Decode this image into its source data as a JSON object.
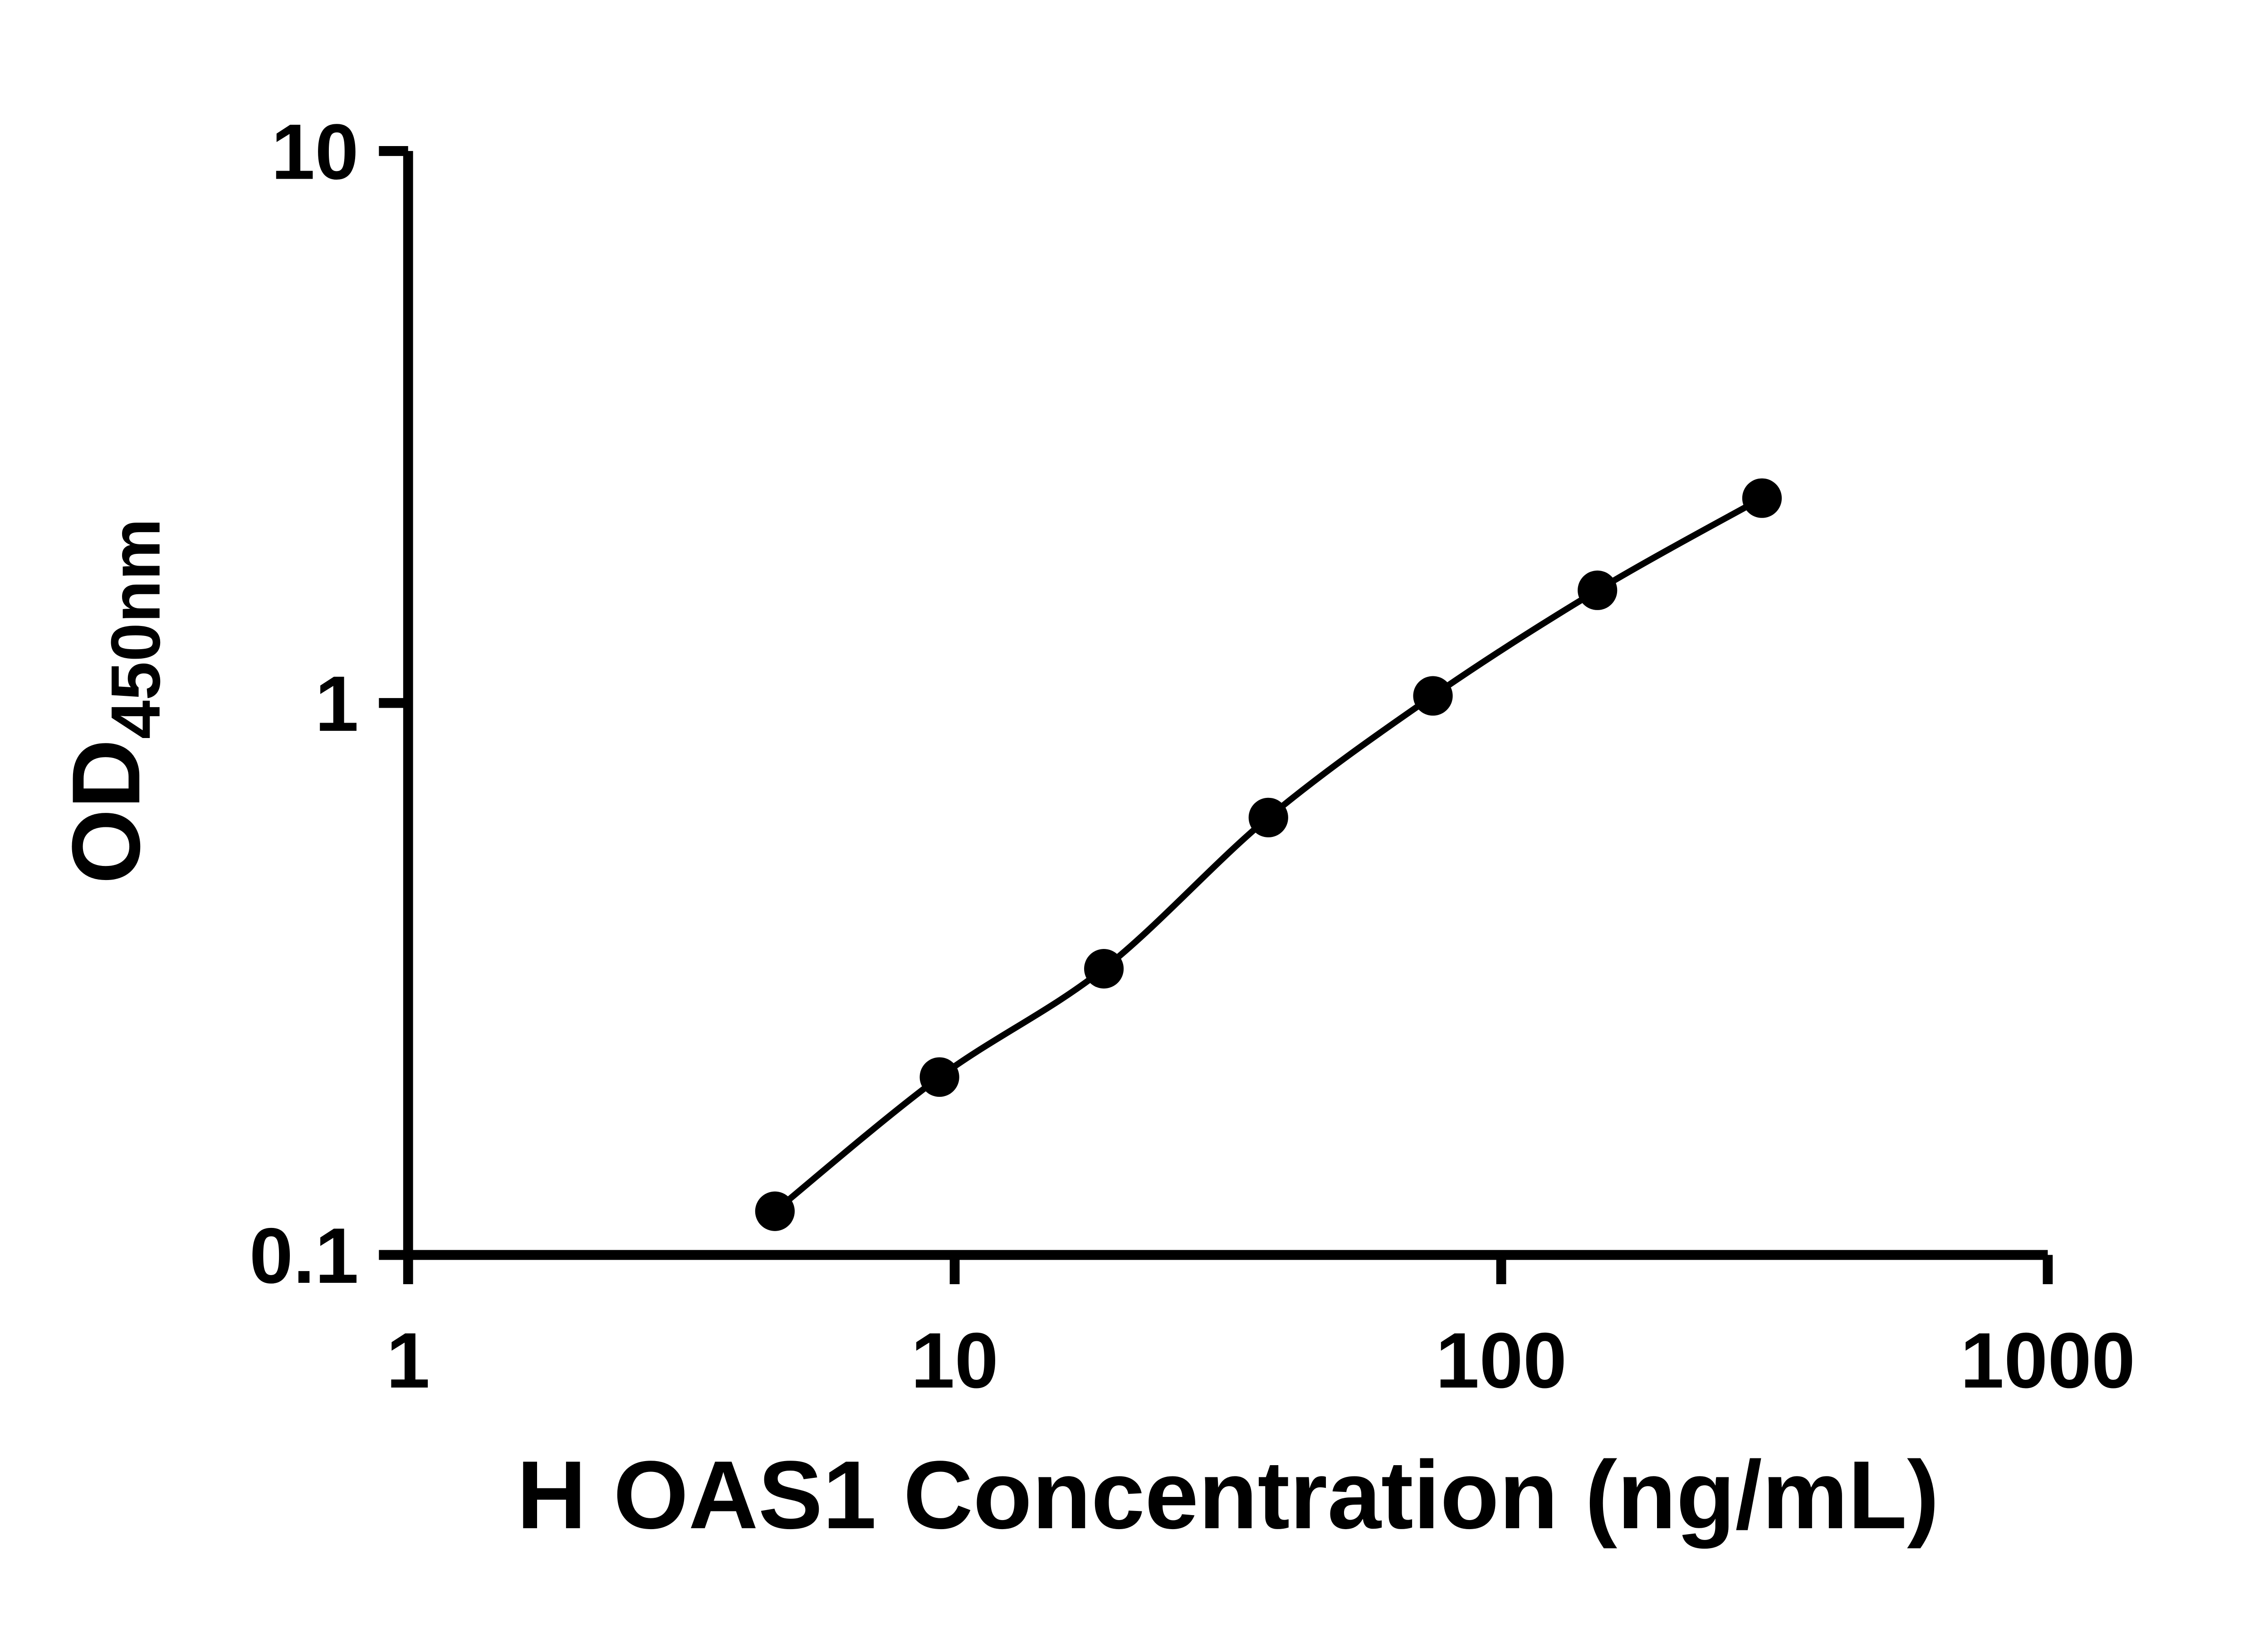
{
  "chart_data": {
    "type": "scatter",
    "xlabel": "H OAS1 Concentration (ng/mL)",
    "ylabel_main": "OD",
    "ylabel_sub": "450nm",
    "x_scale": "log",
    "y_scale": "log",
    "xlim": [
      1,
      1000
    ],
    "ylim": [
      0.1,
      10
    ],
    "x_ticks": [
      1,
      10,
      100,
      1000
    ],
    "x_tick_labels": [
      "1",
      "10",
      "100",
      "1000"
    ],
    "y_ticks": [
      10,
      1,
      0.1
    ],
    "y_tick_labels": [
      "10",
      "1",
      "0.1"
    ],
    "x": [
      4.69,
      9.38,
      18.75,
      37.5,
      75,
      150,
      300
    ],
    "y": [
      0.12,
      0.21,
      0.33,
      0.62,
      1.03,
      1.6,
      2.35
    ],
    "grid": false,
    "legend": false,
    "marker": "circle",
    "marker_color": "#000000",
    "line_color": "#000000",
    "axis_color": "#000000",
    "background_color": "#ffffff"
  }
}
